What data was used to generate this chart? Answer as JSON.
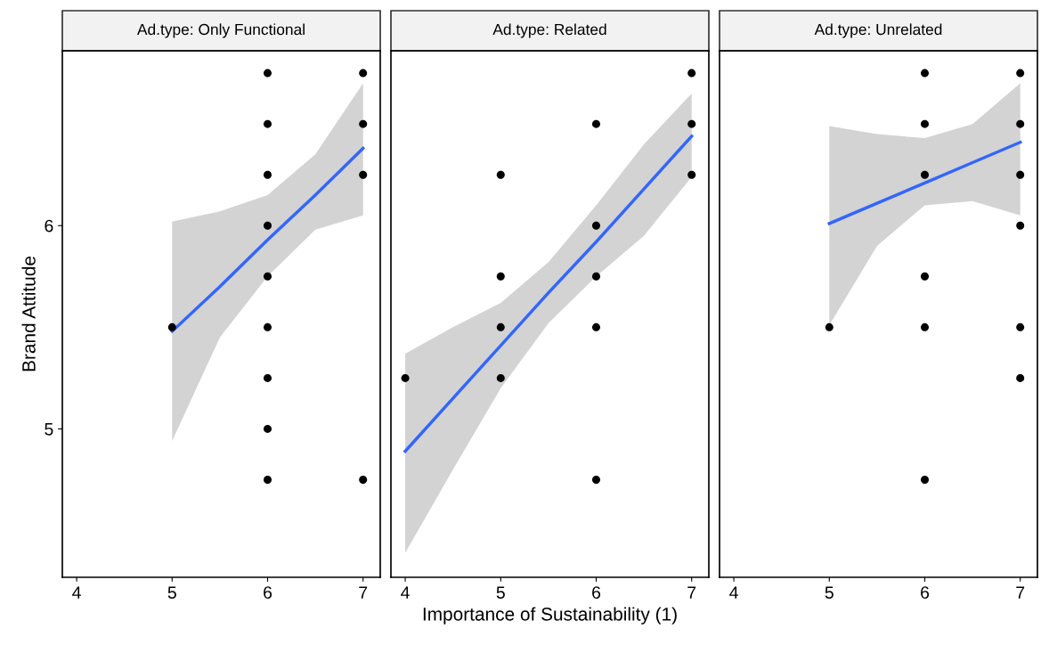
{
  "chart_data": [
    {
      "type": "scatter",
      "title": "Ad.type: Only Functional",
      "ylabel": "Brand Attitude",
      "xlim": [
        3.85,
        7.18
      ],
      "xticks": [
        4,
        5,
        6,
        7
      ],
      "ylim": [
        4.27,
        6.86
      ],
      "yticks": [
        5,
        6
      ],
      "grid": false,
      "legend": false,
      "series": [
        {
          "marker": "circle",
          "color": "#000000",
          "x": [
            5,
            6,
            6,
            6,
            6,
            6,
            6,
            6,
            6,
            6,
            7,
            7,
            7,
            7
          ],
          "values": [
            5.5,
            6.75,
            6.5,
            6.25,
            6.0,
            5.75,
            5.5,
            5.25,
            5.0,
            4.75,
            6.75,
            6.5,
            6.25,
            4.75
          ]
        },
        {
          "type": "line",
          "color": "#3366ff",
          "x": [
            5,
            5.5,
            6,
            6.5,
            7
          ],
          "values": [
            5.48,
            5.7,
            5.93,
            6.15,
            6.38
          ],
          "lower": [
            4.94,
            5.45,
            5.75,
            5.98,
            6.05
          ],
          "upper": [
            6.02,
            6.07,
            6.15,
            6.35,
            6.7
          ]
        }
      ]
    },
    {
      "type": "scatter",
      "title": "Ad.type: Related",
      "xlabel": "Importance of Sustainability (1)",
      "xlim": [
        3.85,
        7.18
      ],
      "xticks": [
        4,
        5,
        6,
        7
      ],
      "ylim": [
        4.27,
        6.86
      ],
      "yticks": [
        5,
        6
      ],
      "tick_labels": "x",
      "grid": false,
      "legend": false,
      "series": [
        {
          "marker": "circle",
          "color": "#000000",
          "x": [
            4,
            5,
            5,
            5,
            5,
            6,
            6,
            6,
            6,
            6,
            7,
            7,
            7
          ],
          "values": [
            5.25,
            6.25,
            5.75,
            5.5,
            5.25,
            6.5,
            6.0,
            5.75,
            5.5,
            4.75,
            6.75,
            6.5,
            6.25
          ]
        },
        {
          "type": "line",
          "color": "#3366ff",
          "x": [
            4,
            4.5,
            5,
            5.5,
            6,
            6.5,
            7
          ],
          "values": [
            4.89,
            5.15,
            5.41,
            5.67,
            5.92,
            6.18,
            6.44
          ],
          "lower": [
            4.39,
            4.8,
            5.2,
            5.52,
            5.75,
            5.95,
            6.24
          ],
          "upper": [
            5.37,
            5.5,
            5.62,
            5.82,
            6.1,
            6.4,
            6.65
          ]
        }
      ]
    },
    {
      "type": "scatter",
      "title": "Ad.type: Unrelated",
      "xlim": [
        3.85,
        7.18
      ],
      "xticks": [
        4,
        5,
        6,
        7
      ],
      "ylim": [
        4.27,
        6.86
      ],
      "yticks": [
        5,
        6
      ],
      "tick_labels": "x",
      "grid": false,
      "legend": false,
      "series": [
        {
          "marker": "circle",
          "color": "#000000",
          "x": [
            5,
            6,
            6,
            6,
            6,
            6,
            6,
            7,
            7,
            7,
            7,
            7,
            7
          ],
          "values": [
            5.5,
            6.75,
            6.5,
            6.25,
            5.75,
            5.5,
            4.75,
            6.75,
            6.5,
            6.25,
            6.0,
            5.5,
            5.25
          ]
        },
        {
          "type": "line",
          "color": "#3366ff",
          "x": [
            5,
            5.5,
            6,
            6.5,
            7
          ],
          "values": [
            6.01,
            6.11,
            6.21,
            6.31,
            6.41
          ],
          "lower": [
            5.51,
            5.9,
            6.1,
            6.12,
            6.05
          ],
          "upper": [
            6.49,
            6.45,
            6.43,
            6.5,
            6.7
          ]
        }
      ]
    }
  ]
}
